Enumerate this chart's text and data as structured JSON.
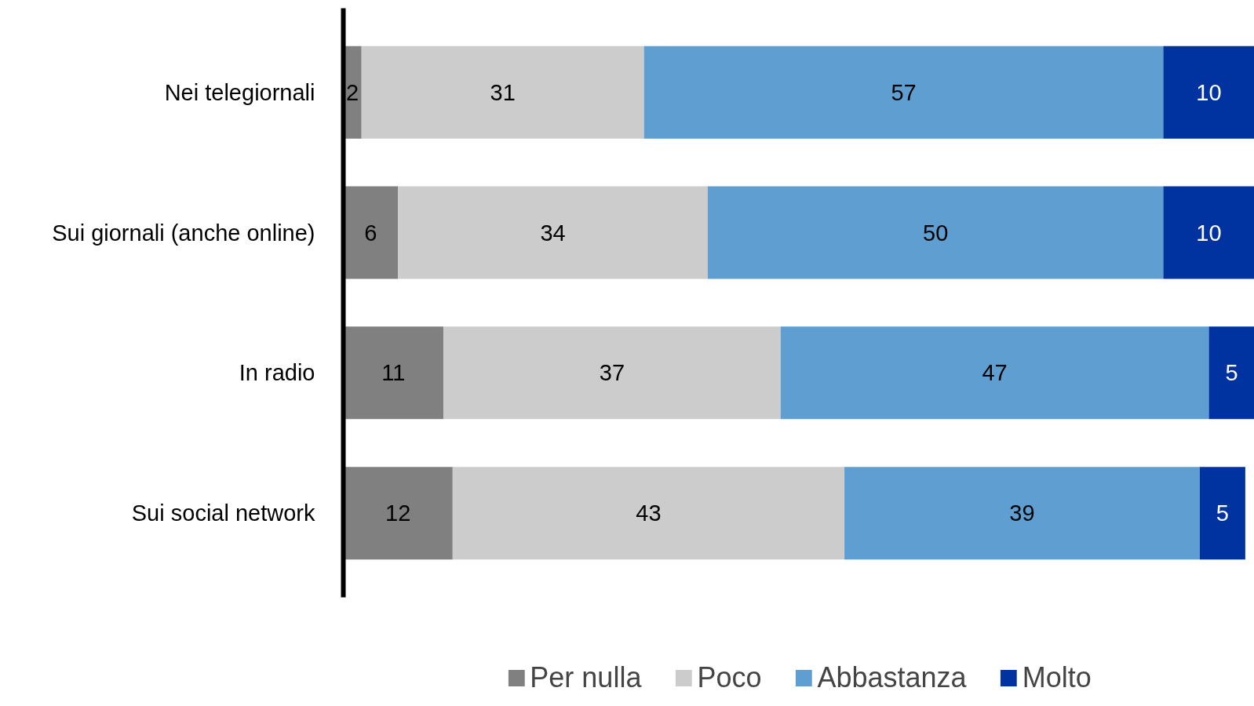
{
  "chart_data": {
    "type": "bar",
    "orientation": "horizontal",
    "stacked": true,
    "data_labels": true,
    "legend": "bottom",
    "grid": false,
    "categories": [
      "Nei telegiornali",
      "Sui giornali (anche online)",
      "In radio",
      "Sui social network"
    ],
    "series": [
      {
        "name": "Per nulla",
        "color": "#808080",
        "values": [
          2,
          6,
          11,
          12
        ]
      },
      {
        "name": "Poco",
        "color": "#cccccc",
        "values": [
          31,
          34,
          37,
          43
        ]
      },
      {
        "name": "Abbastanza",
        "color": "#5f9ed1",
        "values": [
          57,
          50,
          47,
          39
        ]
      },
      {
        "name": "Molto",
        "color": "#0033a0",
        "values": [
          10,
          10,
          5,
          5
        ]
      }
    ]
  }
}
